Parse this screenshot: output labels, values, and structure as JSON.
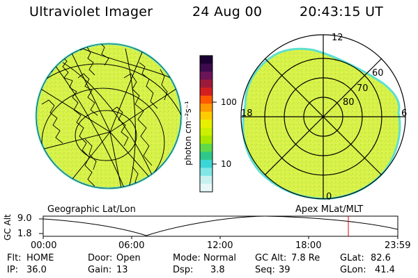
{
  "header": {
    "instrument": "Ultraviolet Imager",
    "date": "24 Aug 00",
    "time": "20:43:15 UT"
  },
  "colorbar": {
    "unit_label": "photon cm⁻²s⁻¹",
    "ticks": [
      "100",
      "10"
    ],
    "colors": [
      "#1a0033",
      "#3d0a4d",
      "#6b1457",
      "#9e1a3a",
      "#d41f1f",
      "#ff5a00",
      "#ff9900",
      "#ffcc00",
      "#e8f000",
      "#ccf000",
      "#a8e600",
      "#5fd94a",
      "#2ec88a",
      "#3bd6d6",
      "#80e6e6",
      "#c8f0f0",
      "#e8f8f8"
    ]
  },
  "left_map": {
    "label": "Geographic Lat/Lon"
  },
  "right_map": {
    "label": "Apex MLat/MLT",
    "mlt_labels": [
      "12",
      "18",
      "6",
      "0"
    ],
    "lat_labels": [
      "60",
      "70",
      "80"
    ]
  },
  "timeline": {
    "ylabel": "GC Alt",
    "y_ticks": [
      "9.0",
      "1.8"
    ],
    "x_ticks": [
      "00:00",
      "06:00",
      "12:00",
      "18:00",
      "23:59"
    ],
    "marker_color": "#e00000"
  },
  "status": {
    "flt_label": "Flt:",
    "flt_value": "HOME",
    "ip_label": "IP:",
    "ip_value": "36.0",
    "door_label": "Door:",
    "door_value": "Open",
    "gain_label": "Gain:",
    "gain_value": "13",
    "mode_label": "Mode:",
    "mode_value": "Normal",
    "dsp_label": "Dsp:",
    "dsp_value": "3.8",
    "gcalt_label": "GC Alt:",
    "gcalt_value": "7.8 Re",
    "seq_label": "Seq:",
    "seq_value": "39",
    "glat_label": "GLat:",
    "glat_value": "82.6",
    "glon_label": "GLon:",
    "glon_value": "41.4"
  },
  "colors": {
    "auroral_fill": "#d9f24a",
    "auroral_edge": "#5ce0d0",
    "grid": "#000000"
  }
}
